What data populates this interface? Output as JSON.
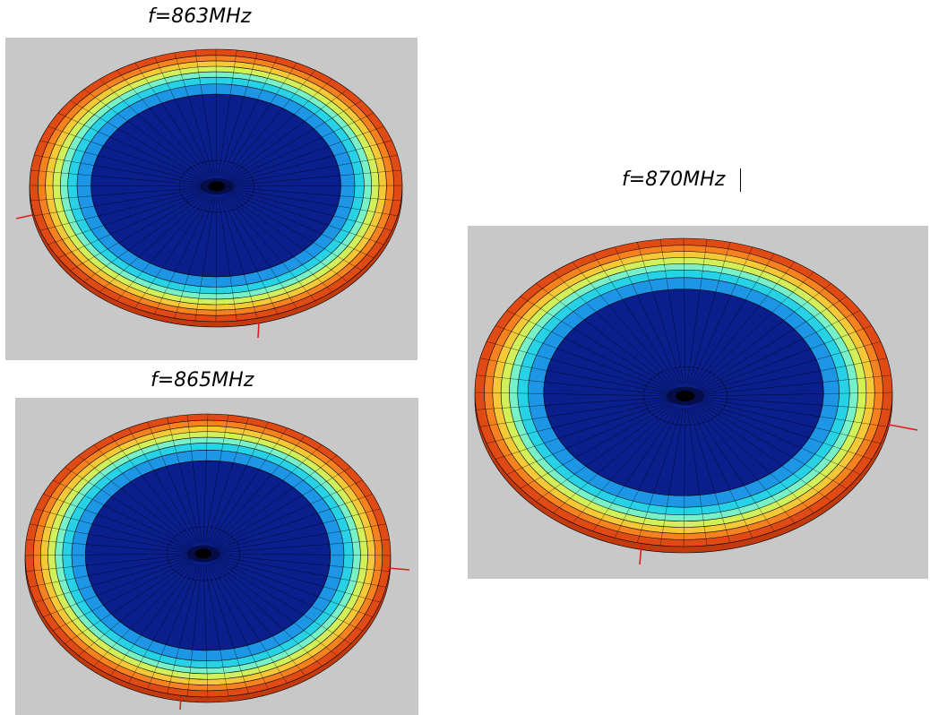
{
  "figure": {
    "panels": [
      {
        "id": "p863",
        "title": "f=863MHz"
      },
      {
        "id": "p865",
        "title": "f=865MHz"
      },
      {
        "id": "p870",
        "title": "f=870MHz"
      }
    ],
    "colors": {
      "background": "#c8c8c8",
      "bands": [
        "#e04a14",
        "#f5821e",
        "#f5c838",
        "#d2f05a",
        "#78f0c8",
        "#28d2e6",
        "#1e96e6",
        "#145ad2",
        "#0a1e8c"
      ],
      "hotspot": "#050a3c",
      "axis": "#e01e1e",
      "grid": "#000000"
    }
  }
}
